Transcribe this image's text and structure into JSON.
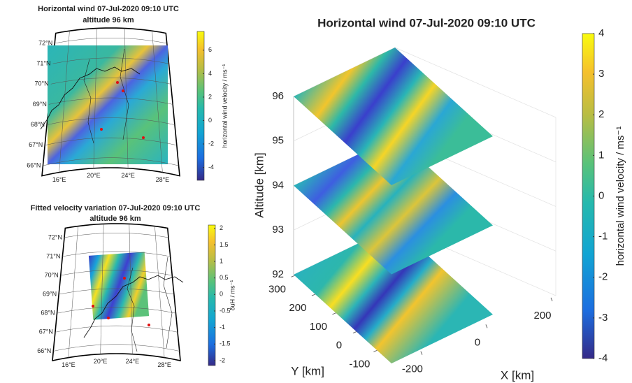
{
  "chart_data": [
    {
      "type": "map",
      "title": "Horizontal wind 07-Jul-2020 09:10 UTC",
      "subtitle": "altitude 96 km",
      "latlim": [
        65.5,
        72.5
      ],
      "lonlim": [
        14,
        30
      ],
      "lat_ticks": [
        {
          "value": 72,
          "label": "72°N"
        },
        {
          "value": 71,
          "label": "71°N"
        },
        {
          "value": 70,
          "label": "70°N"
        },
        {
          "value": 69,
          "label": "69°N"
        },
        {
          "value": 68,
          "label": "68°N"
        },
        {
          "value": 67,
          "label": "67°N"
        },
        {
          "value": 66,
          "label": "66°N"
        }
      ],
      "lon_ticks": [
        {
          "value": 16,
          "label": "16°E"
        },
        {
          "value": 20,
          "label": "20°E"
        },
        {
          "value": 24,
          "label": "24°E"
        },
        {
          "value": 28,
          "label": "28°E"
        }
      ],
      "colorbar_label": "horizontal wind velocity / ms⁻¹",
      "clim": [
        -5.1,
        7.6
      ],
      "cticks": [
        -4,
        -2,
        0,
        2,
        4,
        6
      ]
    },
    {
      "type": "map",
      "title": "Fitted velocity variation 07-Jul-2020 09:10 UTC",
      "subtitle": "altitude 96 km",
      "latlim": [
        65.5,
        72.5
      ],
      "lonlim": [
        14,
        30
      ],
      "lat_ticks": [
        {
          "value": 72,
          "label": "72°N"
        },
        {
          "value": 71,
          "label": "71°N"
        },
        {
          "value": 70,
          "label": "70°N"
        },
        {
          "value": 69,
          "label": "69°N"
        },
        {
          "value": 68,
          "label": "68°N"
        },
        {
          "value": 67,
          "label": "67°N"
        },
        {
          "value": 66,
          "label": "66°N"
        }
      ],
      "lon_ticks": [
        {
          "value": 16,
          "label": "16°E"
        },
        {
          "value": 20,
          "label": "20°E"
        },
        {
          "value": 24,
          "label": "24°E"
        },
        {
          "value": 28,
          "label": "28°E"
        }
      ],
      "colorbar_label": "δuH / ms⁻¹",
      "clim": [
        -2.15,
        2.1
      ],
      "cticks": [
        -2,
        -1.5,
        -1,
        -0.5,
        0,
        0.5,
        1,
        1.5,
        2
      ]
    },
    {
      "type": "surface3d",
      "title": "Horizontal wind 07-Jul-2020 09:10 UTC",
      "zlabel": "Altitude [km]",
      "ylabel": "Y [km]",
      "xlabel": "X [km]",
      "zlim": [
        92,
        96
      ],
      "zticks": [
        92,
        93,
        94,
        95,
        96
      ],
      "ylim": [
        -170,
        305
      ],
      "yticks": [
        -100,
        0,
        100,
        200,
        300
      ],
      "xlim": [
        -290,
        215
      ],
      "xticks": [
        -200,
        0,
        200
      ],
      "layers": [
        92,
        94,
        96
      ],
      "colorbar_label": "horizontal wind velocity / ms⁻¹",
      "clim": [
        -4,
        4
      ],
      "cticks": [
        -4,
        -3,
        -2,
        -1,
        0,
        1,
        2,
        3,
        4
      ]
    }
  ]
}
